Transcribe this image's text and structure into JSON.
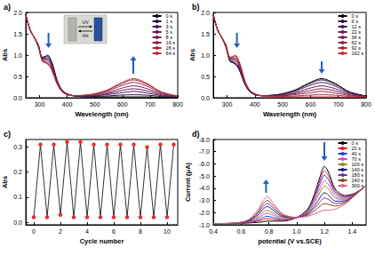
{
  "chart_data": [
    {
      "type": "line",
      "title": "a)",
      "x_label": "Wavelength (nm)",
      "y_label": "Abs",
      "annotations": [
        "UV",
        "Vis"
      ],
      "x": [
        250,
        265,
        280,
        295,
        310,
        320,
        330,
        340,
        350,
        365,
        385,
        420,
        480,
        540,
        590,
        640,
        690,
        740,
        800
      ],
      "xlim": [
        250,
        800
      ],
      "xticks": [
        300,
        400,
        500,
        600,
        700,
        800
      ],
      "ylim": [
        0,
        2
      ],
      "yticks": [
        {
          "value": 0,
          "label": "0.0"
        },
        0.5,
        {
          "value": 1,
          "label": "1.0"
        },
        1.5,
        {
          "value": 2,
          "label": "2.0"
        }
      ],
      "grid": false,
      "legend": "upper right",
      "series": [
        {
          "name": "0 s",
          "color": "#000000",
          "values": [
            1.95,
            1.6,
            1.42,
            1.25,
            0.95,
            0.97,
            1.0,
            0.9,
            0.72,
            0.38,
            0.15,
            0.05,
            0.02,
            0.02,
            0.02,
            0.02,
            0.02,
            0.01,
            0.01
          ]
        },
        {
          "name": "1 s",
          "color": "#2b0f3a",
          "values": [
            1.95,
            1.6,
            1.42,
            1.24,
            0.94,
            0.95,
            0.97,
            0.88,
            0.7,
            0.37,
            0.15,
            0.05,
            0.03,
            0.04,
            0.06,
            0.07,
            0.06,
            0.03,
            0.01
          ]
        },
        {
          "name": "3 s",
          "color": "#4a1458",
          "values": [
            1.95,
            1.6,
            1.42,
            1.24,
            0.92,
            0.93,
            0.93,
            0.84,
            0.67,
            0.36,
            0.14,
            0.05,
            0.04,
            0.07,
            0.11,
            0.15,
            0.11,
            0.05,
            0.02
          ]
        },
        {
          "name": "5 s",
          "color": "#6a1a60",
          "values": [
            1.95,
            1.6,
            1.42,
            1.23,
            0.91,
            0.9,
            0.9,
            0.81,
            0.64,
            0.34,
            0.14,
            0.05,
            0.04,
            0.09,
            0.16,
            0.21,
            0.16,
            0.07,
            0.02
          ]
        },
        {
          "name": "8 s",
          "color": "#7f1f55",
          "values": [
            1.95,
            1.6,
            1.42,
            1.22,
            0.89,
            0.88,
            0.87,
            0.78,
            0.62,
            0.33,
            0.13,
            0.05,
            0.05,
            0.11,
            0.21,
            0.28,
            0.21,
            0.09,
            0.03
          ]
        },
        {
          "name": "16 s",
          "color": "#93244a",
          "values": [
            1.95,
            1.6,
            1.42,
            1.21,
            0.87,
            0.85,
            0.82,
            0.74,
            0.58,
            0.32,
            0.13,
            0.05,
            0.06,
            0.14,
            0.27,
            0.36,
            0.27,
            0.11,
            0.03
          ]
        },
        {
          "name": "26 s",
          "color": "#a52a3e",
          "values": [
            1.95,
            1.6,
            1.42,
            1.2,
            0.86,
            0.83,
            0.8,
            0.72,
            0.56,
            0.31,
            0.12,
            0.05,
            0.07,
            0.16,
            0.31,
            0.42,
            0.31,
            0.13,
            0.04
          ]
        },
        {
          "name": "64 s",
          "color": "#b33030",
          "values": [
            1.95,
            1.6,
            1.42,
            1.2,
            0.85,
            0.82,
            0.78,
            0.7,
            0.55,
            0.3,
            0.12,
            0.05,
            0.07,
            0.17,
            0.33,
            0.45,
            0.33,
            0.14,
            0.04
          ]
        }
      ]
    },
    {
      "type": "line",
      "title": "b)",
      "x_label": "Wavelength (nm)",
      "y_label": "Abs",
      "x": [
        250,
        265,
        280,
        295,
        310,
        320,
        330,
        340,
        350,
        365,
        385,
        420,
        480,
        540,
        590,
        640,
        690,
        740,
        800
      ],
      "xlim": [
        250,
        800
      ],
      "xticks": [
        300,
        400,
        500,
        600,
        700,
        800
      ],
      "ylim": [
        0,
        2
      ],
      "yticks": [
        {
          "value": 0,
          "label": "0.0"
        },
        0.5,
        {
          "value": 1,
          "label": "1.0"
        },
        1.5,
        {
          "value": 2,
          "label": "2.0"
        }
      ],
      "grid": false,
      "legend": "upper right",
      "series": [
        {
          "name": "0 s",
          "color": "#000000",
          "values": [
            1.95,
            1.6,
            1.42,
            1.2,
            0.85,
            0.82,
            0.78,
            0.7,
            0.55,
            0.3,
            0.12,
            0.05,
            0.07,
            0.17,
            0.33,
            0.45,
            0.33,
            0.14,
            0.04
          ]
        },
        {
          "name": "6 s",
          "color": "#2b0f3a",
          "values": [
            1.95,
            1.6,
            1.42,
            1.2,
            0.86,
            0.83,
            0.8,
            0.72,
            0.56,
            0.31,
            0.12,
            0.05,
            0.07,
            0.16,
            0.31,
            0.42,
            0.31,
            0.13,
            0.04
          ]
        },
        {
          "name": "12 s",
          "color": "#4a1458",
          "values": [
            1.95,
            1.6,
            1.42,
            1.21,
            0.87,
            0.85,
            0.82,
            0.74,
            0.58,
            0.32,
            0.13,
            0.05,
            0.06,
            0.14,
            0.27,
            0.36,
            0.27,
            0.11,
            0.03
          ]
        },
        {
          "name": "22 s",
          "color": "#6a1a60",
          "values": [
            1.95,
            1.6,
            1.42,
            1.22,
            0.89,
            0.88,
            0.87,
            0.78,
            0.62,
            0.33,
            0.13,
            0.05,
            0.05,
            0.11,
            0.21,
            0.28,
            0.21,
            0.09,
            0.03
          ]
        },
        {
          "name": "34 s",
          "color": "#7f1f55",
          "values": [
            1.95,
            1.6,
            1.42,
            1.23,
            0.91,
            0.9,
            0.9,
            0.81,
            0.64,
            0.34,
            0.14,
            0.05,
            0.04,
            0.09,
            0.16,
            0.21,
            0.16,
            0.07,
            0.02
          ]
        },
        {
          "name": "62 s",
          "color": "#93244a",
          "values": [
            1.95,
            1.6,
            1.42,
            1.24,
            0.92,
            0.93,
            0.93,
            0.84,
            0.67,
            0.36,
            0.14,
            0.05,
            0.04,
            0.07,
            0.11,
            0.15,
            0.11,
            0.05,
            0.02
          ]
        },
        {
          "name": "92 s",
          "color": "#a52a3e",
          "values": [
            1.95,
            1.6,
            1.42,
            1.24,
            0.94,
            0.95,
            0.97,
            0.88,
            0.7,
            0.37,
            0.15,
            0.05,
            0.03,
            0.04,
            0.06,
            0.07,
            0.06,
            0.03,
            0.01
          ]
        },
        {
          "name": "192 s",
          "color": "#b33030",
          "values": [
            1.95,
            1.6,
            1.42,
            1.25,
            0.95,
            0.97,
            1.0,
            0.9,
            0.72,
            0.38,
            0.15,
            0.05,
            0.02,
            0.02,
            0.02,
            0.02,
            0.02,
            0.01,
            0.01
          ]
        }
      ]
    },
    {
      "type": "line",
      "title": "c)",
      "x_label": "Cycle number",
      "y_label": "Abs",
      "x": [
        0,
        0.5,
        1,
        1.5,
        2,
        2.5,
        3,
        3.5,
        4,
        4.5,
        5,
        5.5,
        6,
        6.5,
        7,
        7.5,
        8,
        8.5,
        9,
        9.5,
        10,
        10.5
      ],
      "values": [
        0.02,
        0.31,
        0.02,
        0.31,
        0.03,
        0.32,
        0.02,
        0.32,
        0.02,
        0.31,
        0.02,
        0.31,
        0.02,
        0.31,
        0.02,
        0.31,
        0.02,
        0.3,
        0.02,
        0.31,
        0.02,
        0.31
      ],
      "color": "#e8302a",
      "marker": "circle",
      "xlim": [
        -0.6,
        10.8
      ],
      "xticks": [
        0,
        2,
        4,
        6,
        8,
        10
      ],
      "ylim": [
        -0.01,
        0.33
      ],
      "yticks": [
        {
          "value": 0,
          "label": "0.0"
        },
        0.1,
        0.2,
        0.3
      ],
      "grid": false
    },
    {
      "type": "line",
      "title": "d)",
      "x_label": "potential (V vs.SCE)",
      "y_label": "Current (μA)",
      "x": [
        0.4,
        0.55,
        0.65,
        0.72,
        0.76,
        0.79,
        0.83,
        0.9,
        1.0,
        1.08,
        1.13,
        1.17,
        1.2,
        1.23,
        1.28,
        1.35,
        1.42,
        1.5
      ],
      "xlim": [
        0.4,
        1.5
      ],
      "xticks": [
        0.4,
        0.6,
        0.8,
        {
          "value": 1,
          "label": "1.0"
        },
        1.2,
        1.4
      ],
      "ylim": [
        -1,
        -8
      ],
      "yticks": [
        {
          "value": -1,
          "label": "-1.0"
        },
        {
          "value": -2,
          "label": "-2.0"
        },
        {
          "value": -3,
          "label": "-3.0"
        },
        {
          "value": -4,
          "label": "-4.0"
        },
        {
          "value": -5,
          "label": "-5.0"
        },
        {
          "value": -6,
          "label": "-6.0"
        },
        {
          "value": -7,
          "label": "-7.0"
        },
        {
          "value": -8,
          "label": "-8.0"
        }
      ],
      "grid": false,
      "legend": "upper right",
      "series": [
        {
          "name": "0 s",
          "color": "#000000",
          "values": [
            -1.1,
            -1.1,
            -1.15,
            -1.2,
            -1.25,
            -1.3,
            -1.3,
            -1.3,
            -1.6,
            -2.3,
            -3.6,
            -5.0,
            -5.8,
            -5.3,
            -3.9,
            -3.4,
            -3.6,
            -4.2
          ]
        },
        {
          "name": "20 s",
          "color": "#e41a1c",
          "values": [
            -1.1,
            -1.11,
            -1.18,
            -1.3,
            -1.43,
            -1.5,
            -1.45,
            -1.36,
            -1.6,
            -2.24,
            -3.43,
            -4.71,
            -5.44,
            -4.99,
            -3.74,
            -3.33,
            -3.58,
            -4.2
          ]
        },
        {
          "name": "40 s",
          "color": "#1f3fd0",
          "values": [
            -1.1,
            -1.11,
            -1.2,
            -1.4,
            -1.6,
            -1.7,
            -1.6,
            -1.42,
            -1.6,
            -2.18,
            -3.26,
            -4.42,
            -5.08,
            -4.68,
            -3.58,
            -3.26,
            -3.56,
            -4.2
          ]
        },
        {
          "name": "70 s",
          "color": "#e040c0",
          "values": [
            -1.1,
            -1.12,
            -1.23,
            -1.53,
            -1.83,
            -1.96,
            -1.8,
            -1.5,
            -1.6,
            -2.1,
            -3.04,
            -4.04,
            -4.61,
            -4.28,
            -3.37,
            -3.17,
            -3.53,
            -4.2
          ]
        },
        {
          "name": "100 s",
          "color": "#8a8a20",
          "values": [
            -1.1,
            -1.12,
            -1.26,
            -1.65,
            -2.04,
            -2.2,
            -1.98,
            -1.57,
            -1.6,
            -2.03,
            -2.84,
            -3.7,
            -4.18,
            -3.91,
            -3.18,
            -3.09,
            -3.51,
            -4.2
          ]
        },
        {
          "name": "140 s",
          "color": "#1a1a80",
          "values": [
            -1.1,
            -1.13,
            -1.3,
            -1.8,
            -2.3,
            -2.5,
            -2.2,
            -1.66,
            -1.6,
            -1.94,
            -2.58,
            -3.26,
            -3.64,
            -3.44,
            -2.94,
            -2.98,
            -3.48,
            -4.2
          ]
        },
        {
          "name": "180 s",
          "color": "#7a2a9a",
          "values": [
            -1.1,
            -1.14,
            -1.33,
            -1.92,
            -2.51,
            -2.74,
            -2.38,
            -1.73,
            -1.6,
            -1.87,
            -2.38,
            -2.91,
            -3.21,
            -3.07,
            -2.75,
            -2.9,
            -3.46,
            -4.2
          ]
        },
        {
          "name": "240 s",
          "color": "#8b4513",
          "values": [
            -1.1,
            -1.14,
            -1.36,
            -2.05,
            -2.74,
            -3.0,
            -2.58,
            -1.81,
            -1.6,
            -1.79,
            -2.16,
            -2.54,
            -2.74,
            -2.67,
            -2.54,
            -2.81,
            -3.43,
            -4.2
          ]
        },
        {
          "name": "300 s",
          "color": "#e06090",
          "values": [
            -1.1,
            -1.15,
            -1.4,
            -2.2,
            -3.0,
            -3.3,
            -2.8,
            -1.9,
            -1.6,
            -1.7,
            -1.9,
            -2.1,
            -2.2,
            -2.2,
            -2.3,
            -2.7,
            -3.4,
            -4.2
          ]
        }
      ]
    }
  ]
}
